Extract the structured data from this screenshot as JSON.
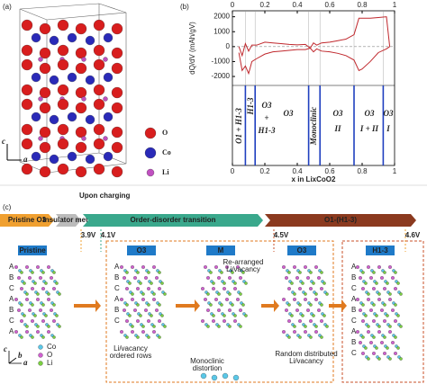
{
  "panel_a": {
    "label": "(a)",
    "legend": [
      "O",
      "Co",
      "Li"
    ],
    "axis_c": "c",
    "axis_a": "a"
  },
  "chart_data": {
    "type": "line",
    "label": "(b)",
    "ylabel": "dQ/dV (mAh/gV)",
    "xlabel": "x in LixCoO2",
    "x": [
      0.04,
      0.06,
      0.08,
      0.1,
      0.12,
      0.15,
      0.2,
      0.25,
      0.3,
      0.35,
      0.4,
      0.45,
      0.48,
      0.5,
      0.52,
      0.55,
      0.6,
      0.65,
      0.7,
      0.75,
      0.78,
      0.8,
      0.85,
      0.9,
      0.95,
      0.97
    ],
    "series": [
      {
        "color": "#c0282d",
        "values": [
          0,
          -600,
          200,
          -300,
          100,
          100,
          300,
          250,
          200,
          150,
          120,
          150,
          -100,
          250,
          100,
          250,
          300,
          400,
          500,
          800,
          1900,
          1900,
          1900,
          1950,
          2000,
          0
        ]
      },
      {
        "color": "#c0282d",
        "values": [
          -400,
          -1600,
          -1300,
          -1800,
          -1000,
          -800,
          -500,
          -350,
          -300,
          -250,
          -200,
          -200,
          -100,
          -350,
          -150,
          -300,
          -350,
          -450,
          -600,
          -900,
          -1600,
          -1500,
          -1000,
          -400,
          -150,
          0
        ]
      }
    ],
    "xlim": [
      0,
      1
    ],
    "xticks": [
      0,
      0.2,
      0.4,
      0.6,
      0.8,
      1
    ],
    "ylim": [
      -2600,
      2400
    ],
    "yticks": [
      2000,
      1000,
      0,
      -1000,
      -2000
    ],
    "boundaries": [
      0.08,
      0.14,
      0.47,
      0.54,
      0.75,
      0.93
    ],
    "boundary_color": "#1f3fbf",
    "phases": [
      "O1 + H1-3",
      "H1-3",
      "O3",
      "+",
      "H1-3",
      "O3",
      "Monoclinic",
      "O3",
      "II",
      "O3",
      "I + II",
      "O3",
      "I"
    ]
  },
  "panel_c": {
    "label": "(c)",
    "title": "Upon charging",
    "stages": [
      "Pristine O3",
      "Insulator metal",
      "Order-disorder transition",
      "O1-(H1-3)"
    ],
    "voltages": [
      "3.9V",
      "4.1V",
      "4.5V",
      "4.6V"
    ],
    "structures": [
      "Pristine",
      "O3",
      "M",
      "O3",
      "H1-3"
    ],
    "notes": {
      "rearranged": [
        "Re-arranged",
        "Li/vacancy"
      ],
      "ordered": [
        "Li/vacancy",
        "ordered rows"
      ],
      "monoclinic": [
        "Monoclinic",
        "distortion"
      ],
      "random": [
        "Random distributed",
        "Li/vacancy"
      ]
    },
    "legend": [
      "Co",
      "O",
      "Li"
    ],
    "axes": [
      "c",
      "a",
      "b"
    ],
    "stack_pristine": [
      "A",
      "B",
      "C",
      "A",
      "B",
      "C",
      "A"
    ],
    "stack_o3": [
      "A",
      "B",
      "C",
      "A",
      "B",
      "C"
    ],
    "stack_h13": [
      "A",
      "B",
      "C",
      "A",
      "B",
      "C",
      "A",
      "B",
      "C"
    ]
  }
}
